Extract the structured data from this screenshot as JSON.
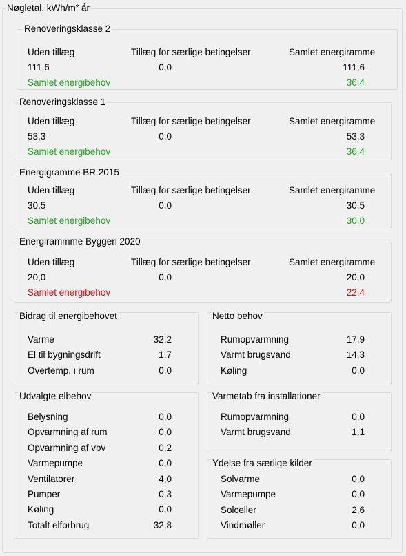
{
  "title": "Nøgletal, kWh/m² år",
  "groups": [
    {
      "title": "Renoveringsklasse 2",
      "headers": [
        "Uden tillæg",
        "Tillæg for særlige betingelser",
        "Samlet energiramme"
      ],
      "values": [
        "111,6",
        "0,0",
        "111,6"
      ],
      "total_label": "Samlet energibehov",
      "total_value": "36,4",
      "total_color": "#1fa51f"
    },
    {
      "title": "Renoveringsklasse 1",
      "headers": [
        "Uden tillæg",
        "Tillæg for særlige betingelser",
        "Samlet energiramme"
      ],
      "values": [
        "53,3",
        "0,0",
        "53,3"
      ],
      "total_label": "Samlet energibehov",
      "total_value": "36,4",
      "total_color": "#1fa51f"
    },
    {
      "title": "Energigramme BR 2015",
      "headers": [
        "Uden tillæg",
        "Tillæg for særlige betingelser",
        "Samlet energiramme"
      ],
      "values": [
        "30,5",
        "0,0",
        "30,5"
      ],
      "total_label": "Samlet energibehov",
      "total_value": "30,0",
      "total_color": "#1fa51f"
    },
    {
      "title": "Energirammme Byggeri 2020",
      "headers": [
        "Uden tillæg",
        "Tillæg for særlige betingelser",
        "Samlet energiramme"
      ],
      "values": [
        "20,0",
        "0,0",
        "20,0"
      ],
      "total_label": "Samlet energibehov",
      "total_value": "22,4",
      "total_color": "#e01010"
    }
  ],
  "panels": [
    {
      "title": "Bidrag til energibehovet",
      "rows": [
        {
          "label": "Varme",
          "value": "32,2"
        },
        {
          "label": "El til bygningsdrift",
          "value": "1,7"
        },
        {
          "label": "Overtemp. i rum",
          "value": "0,0"
        }
      ]
    },
    {
      "title": "Netto behov",
      "rows": [
        {
          "label": "Rumopvarmning",
          "value": "17,9"
        },
        {
          "label": "Varmt brugsvand",
          "value": "14,3"
        },
        {
          "label": "Køling",
          "value": "0,0"
        }
      ]
    },
    {
      "title": "Udvalgte elbehov",
      "rows": [
        {
          "label": "Belysning",
          "value": "0,0"
        },
        {
          "label": "Opvarmning af rum",
          "value": "0,0"
        },
        {
          "label": "Opvarmning af vbv",
          "value": "0,2"
        },
        {
          "label": "Varmepumpe",
          "value": "0,0"
        },
        {
          "label": "Ventilatorer",
          "value": "4,0"
        },
        {
          "label": "Pumper",
          "value": "0,3"
        },
        {
          "label": "Køling",
          "value": "0,0"
        },
        {
          "label": "Totalt elforbrug",
          "value": "32,8"
        }
      ]
    },
    {
      "title": "Varmetab fra installationer",
      "rows": [
        {
          "label": "Rumopvarmning",
          "value": "0,0"
        },
        {
          "label": "Varmt brugsvand",
          "value": "1,1"
        }
      ]
    },
    {
      "title": "Ydelse fra særlige kilder",
      "rows": [
        {
          "label": "Solvarme",
          "value": "0,0"
        },
        {
          "label": "Varmepumpe",
          "value": "0,0"
        },
        {
          "label": "Solceller",
          "value": "2,6"
        },
        {
          "label": "Vindmøller",
          "value": "0,0"
        }
      ]
    }
  ]
}
